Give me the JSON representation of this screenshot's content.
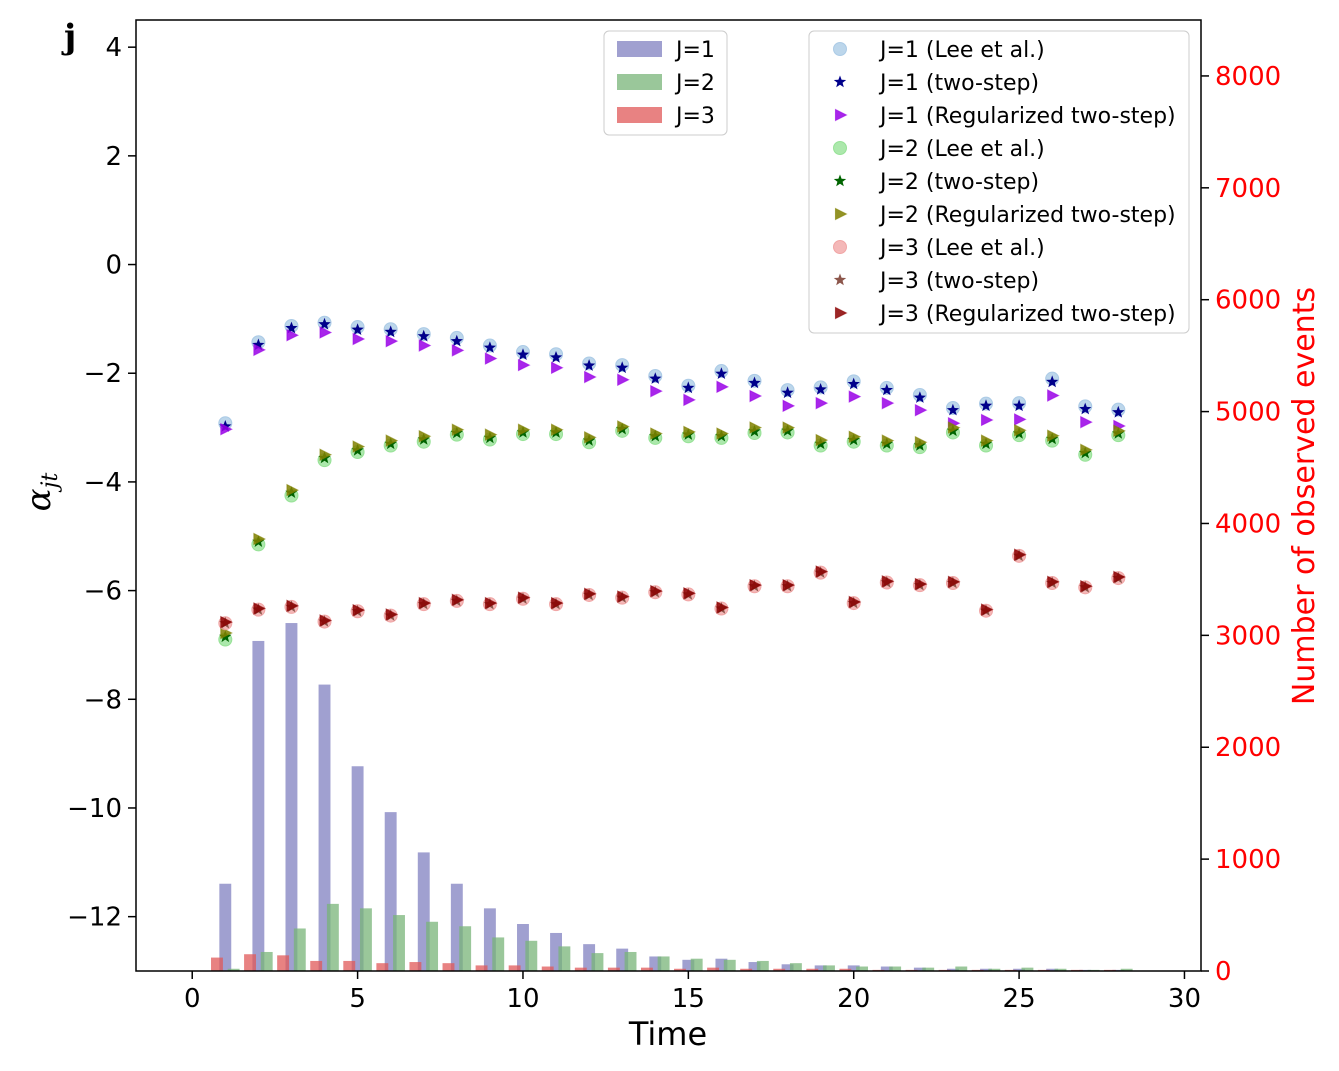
{
  "chart_data": {
    "type": "scatter",
    "panel_label": "j",
    "xlabel": "Time",
    "ylabel_left": "α_jt",
    "ylabel_right": "Number of observed events",
    "xlim": [
      -1.7,
      30.5
    ],
    "ylim_left": [
      -13.0,
      4.5
    ],
    "ylim_right": [
      0,
      8500
    ],
    "x_ticks": [
      "0",
      "5",
      "10",
      "15",
      "20",
      "25",
      "30"
    ],
    "y_ticks_left": [
      "4",
      "2",
      "0",
      "−2",
      "−4",
      "−6",
      "−8",
      "−10",
      "−12"
    ],
    "y_ticks_right": [
      "8000",
      "7000",
      "6000",
      "5000",
      "4000",
      "3000",
      "2000",
      "1000",
      "0"
    ],
    "colors": {
      "j1_bar": "#8080c0",
      "j2_bar": "#78b478",
      "j3_bar": "#e05858",
      "j1_lee": "#a6c8e4",
      "j1_two": "#00008b",
      "j1_reg": "#9900e6",
      "j2_lee": "#90e090",
      "j2_two": "#006400",
      "j2_reg": "#808000",
      "j3_lee": "#f0a0a0",
      "j3_two": "#8c564b",
      "j3_reg": "#8b0000",
      "right_axis": "#ff0000"
    },
    "bar_legend": [
      "J=1",
      "J=2",
      "J=3"
    ],
    "scatter_legend": [
      "J=1 (Lee et al.)",
      "J=1 (two-step)",
      "J=1 (Regularized two-step)",
      "J=2 (Lee et al.)",
      "J=2 (two-step)",
      "J=2 (Regularized two-step)",
      "J=3 (Lee et al.)",
      "J=3 (two-step)",
      "J=3 (Regularized two-step)"
    ],
    "x": [
      1,
      2,
      3,
      4,
      5,
      6,
      7,
      8,
      9,
      10,
      11,
      12,
      13,
      14,
      15,
      16,
      17,
      18,
      19,
      20,
      21,
      22,
      23,
      24,
      25,
      26,
      27,
      28
    ],
    "bars": {
      "J=1": [
        780,
        2950,
        3110,
        2560,
        1830,
        1420,
        1060,
        780,
        560,
        420,
        340,
        240,
        200,
        130,
        100,
        110,
        80,
        60,
        50,
        50,
        40,
        30,
        20,
        20,
        20,
        20,
        10,
        10
      ],
      "J=2": [
        20,
        170,
        380,
        600,
        560,
        500,
        440,
        400,
        300,
        270,
        220,
        160,
        170,
        130,
        110,
        100,
        90,
        70,
        50,
        40,
        40,
        30,
        40,
        20,
        30,
        20,
        10,
        20
      ],
      "J=3": [
        120,
        150,
        140,
        90,
        90,
        70,
        80,
        70,
        50,
        50,
        40,
        30,
        30,
        30,
        20,
        30,
        20,
        20,
        20,
        20,
        10,
        10,
        10,
        10,
        10,
        10,
        10,
        10
      ]
    },
    "series": [
      {
        "name": "J=1 (Lee et al.)",
        "values": [
          -2.92,
          -1.43,
          -1.13,
          -1.07,
          -1.15,
          -1.19,
          -1.28,
          -1.35,
          -1.49,
          -1.61,
          -1.65,
          -1.82,
          -1.85,
          -2.05,
          -2.23,
          -1.96,
          -2.14,
          -2.31,
          -2.26,
          -2.15,
          -2.27,
          -2.4,
          -2.64,
          -2.56,
          -2.55,
          -2.1,
          -2.61,
          -2.67
        ]
      },
      {
        "name": "J=1 (two-step)",
        "values": [
          -2.98,
          -1.48,
          -1.17,
          -1.1,
          -1.2,
          -1.24,
          -1.32,
          -1.41,
          -1.53,
          -1.66,
          -1.71,
          -1.86,
          -1.9,
          -2.1,
          -2.27,
          -2.01,
          -2.18,
          -2.36,
          -2.3,
          -2.2,
          -2.31,
          -2.45,
          -2.68,
          -2.6,
          -2.6,
          -2.16,
          -2.66,
          -2.72
        ]
      },
      {
        "name": "J=1 (Regularized two-step)",
        "values": [
          -3.03,
          -1.57,
          -1.3,
          -1.25,
          -1.37,
          -1.41,
          -1.49,
          -1.58,
          -1.73,
          -1.85,
          -1.9,
          -2.07,
          -2.12,
          -2.33,
          -2.49,
          -2.25,
          -2.42,
          -2.6,
          -2.55,
          -2.43,
          -2.55,
          -2.68,
          -2.92,
          -2.86,
          -2.85,
          -2.41,
          -2.9,
          -2.97
        ]
      },
      {
        "name": "J=2 (Lee et al.)",
        "values": [
          -6.9,
          -5.15,
          -4.25,
          -3.6,
          -3.45,
          -3.33,
          -3.26,
          -3.13,
          -3.22,
          -3.12,
          -3.12,
          -3.27,
          -3.06,
          -3.19,
          -3.16,
          -3.19,
          -3.1,
          -3.09,
          -3.33,
          -3.26,
          -3.33,
          -3.36,
          -3.09,
          -3.33,
          -3.14,
          -3.24,
          -3.5,
          -3.14
        ]
      },
      {
        "name": "J=2 (two-step)",
        "values": [
          -6.85,
          -5.1,
          -4.2,
          -3.56,
          -3.42,
          -3.3,
          -3.22,
          -3.1,
          -3.19,
          -3.09,
          -3.09,
          -3.24,
          -3.03,
          -3.16,
          -3.13,
          -3.16,
          -3.07,
          -3.06,
          -3.3,
          -3.23,
          -3.3,
          -3.33,
          -3.06,
          -3.3,
          -3.11,
          -3.21,
          -3.47,
          -3.11
        ]
      },
      {
        "name": "J=2 (Regularized two-step)",
        "values": [
          -6.78,
          -5.05,
          -4.15,
          -3.5,
          -3.35,
          -3.24,
          -3.16,
          -3.04,
          -3.13,
          -3.04,
          -3.04,
          -3.18,
          -2.98,
          -3.11,
          -3.08,
          -3.11,
          -3.0,
          -3.0,
          -3.23,
          -3.17,
          -3.24,
          -3.27,
          -3.0,
          -3.24,
          -3.05,
          -3.15,
          -3.41,
          -3.06
        ]
      },
      {
        "name": "J=3 (Lee et al.)",
        "values": [
          -6.6,
          -6.35,
          -6.3,
          -6.57,
          -6.38,
          -6.46,
          -6.25,
          -6.19,
          -6.25,
          -6.15,
          -6.25,
          -6.08,
          -6.13,
          -6.03,
          -6.07,
          -6.33,
          -5.92,
          -5.92,
          -5.67,
          -6.23,
          -5.85,
          -5.9,
          -5.86,
          -6.37,
          -5.36,
          -5.86,
          -5.94,
          -5.77
        ]
      },
      {
        "name": "J=3 (two-step)",
        "values": [
          -6.6,
          -6.35,
          -6.3,
          -6.57,
          -6.38,
          -6.46,
          -6.25,
          -6.19,
          -6.25,
          -6.15,
          -6.25,
          -6.08,
          -6.13,
          -6.03,
          -6.07,
          -6.33,
          -5.92,
          -5.92,
          -5.67,
          -6.23,
          -5.85,
          -5.9,
          -5.86,
          -6.37,
          -5.36,
          -5.86,
          -5.94,
          -5.77
        ]
      },
      {
        "name": "J=3 (Regularized two-step)",
        "values": [
          -6.58,
          -6.33,
          -6.28,
          -6.55,
          -6.36,
          -6.44,
          -6.23,
          -6.17,
          -6.23,
          -6.13,
          -6.23,
          -6.06,
          -6.11,
          -6.01,
          -6.05,
          -6.31,
          -5.9,
          -5.9,
          -5.65,
          -6.21,
          -5.83,
          -5.88,
          -5.84,
          -6.35,
          -5.34,
          -5.84,
          -5.92,
          -5.75
        ]
      }
    ]
  }
}
